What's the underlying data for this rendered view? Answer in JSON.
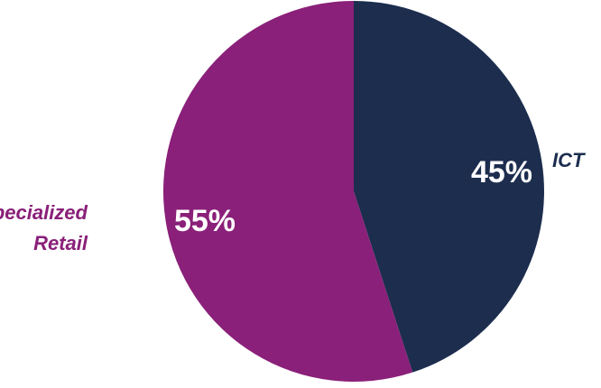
{
  "chart_data": {
    "type": "pie",
    "categories": [
      "ICT",
      "Specialized Retail"
    ],
    "values": [
      45,
      55
    ],
    "value_labels": [
      "45%",
      "55%"
    ],
    "category_label_lines": [
      [
        "ICT"
      ],
      [
        "Specialized",
        "Retail"
      ]
    ],
    "colors": [
      "#1c2d4e",
      "#8a2079"
    ],
    "label_colors": [
      "#1c2d4e",
      "#8a2079"
    ],
    "start_angle": "12 o'clock",
    "direction": "clockwise",
    "legend": "none"
  }
}
